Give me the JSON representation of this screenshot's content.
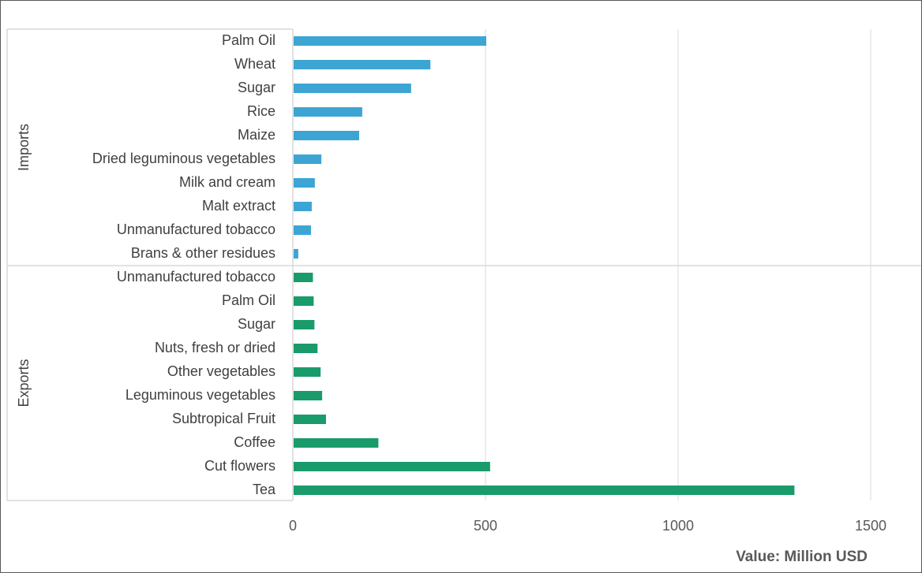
{
  "chart_data": {
    "type": "bar",
    "orientation": "horizontal",
    "xlabel": "Value: Million USD",
    "xlim": [
      0,
      1500
    ],
    "xticks": [
      0,
      500,
      1000,
      1500
    ],
    "grid": true,
    "legend": "none",
    "groups": [
      {
        "name": "Imports",
        "color": "#3DA5D4",
        "categories": [
          "Palm Oil",
          "Wheat",
          "Sugar",
          "Rice",
          "Maize",
          "Dried leguminous vegetables",
          "Milk and cream",
          "Malt extract",
          "Unmanufactured tobacco",
          "Brans & other residues"
        ],
        "values": [
          500,
          355,
          305,
          178,
          170,
          72,
          55,
          47,
          45,
          12
        ]
      },
      {
        "name": "Exports",
        "color": "#1A9B6B",
        "categories": [
          "Unmanufactured tobacco",
          "Palm Oil",
          "Sugar",
          "Nuts, fresh or dried",
          "Other vegetables",
          "Leguminous vegetables",
          "Subtropical Fruit",
          "Coffee",
          "Cut flowers",
          "Tea"
        ],
        "values": [
          50,
          52,
          54,
          62,
          70,
          74,
          84,
          220,
          510,
          1300
        ]
      }
    ]
  }
}
